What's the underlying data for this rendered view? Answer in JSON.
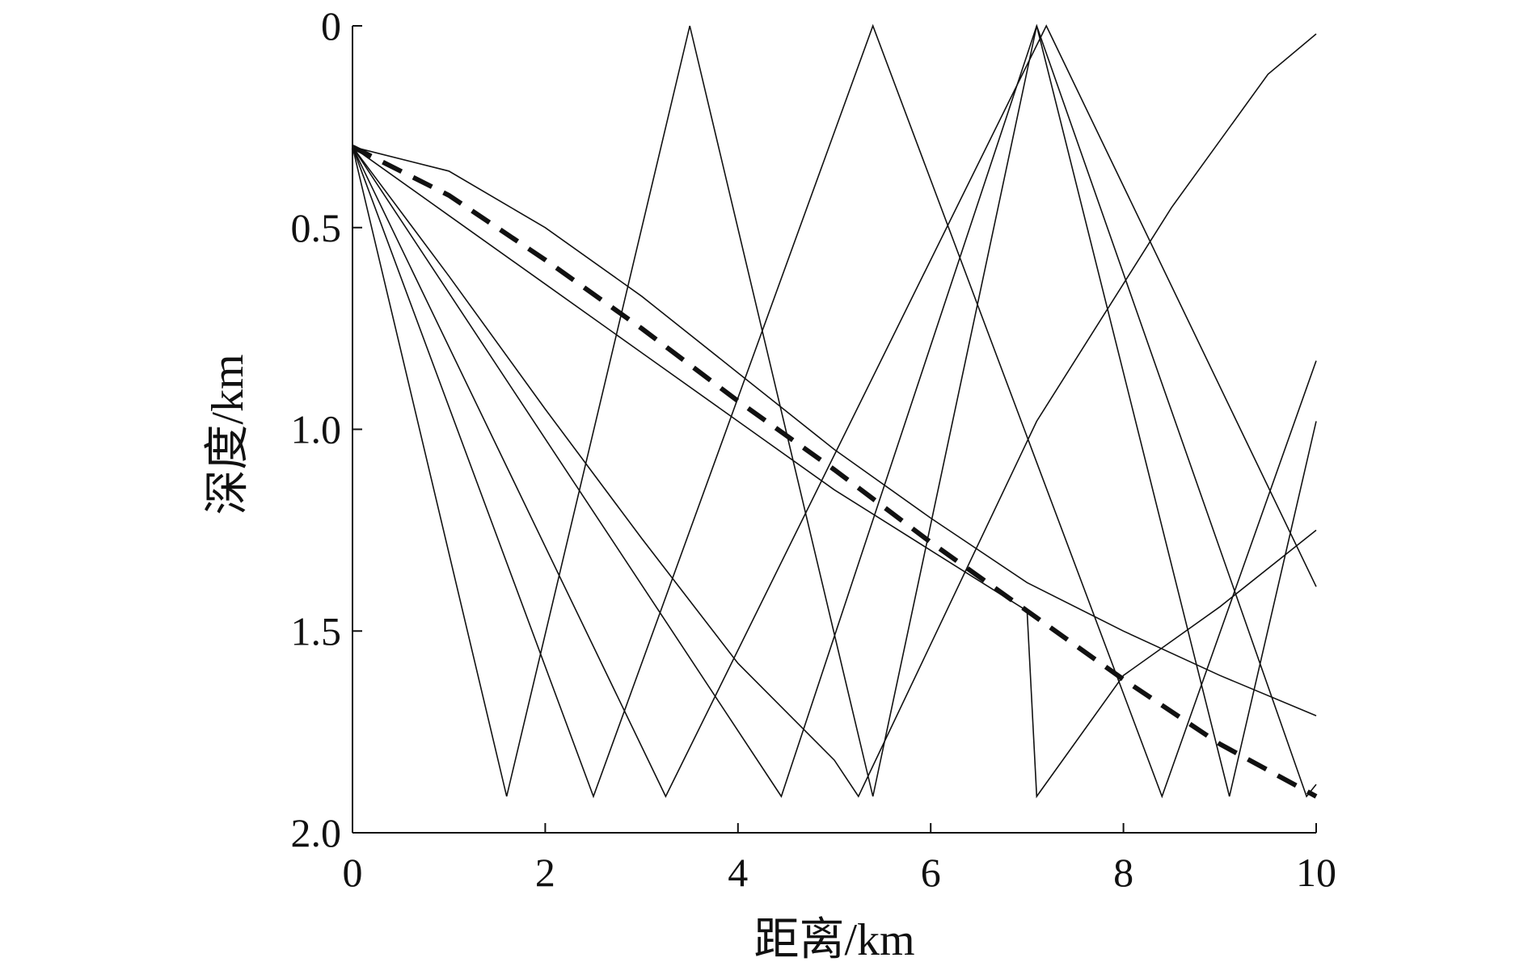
{
  "chart_data": {
    "type": "line",
    "title": "",
    "xlabel": "距离/km",
    "ylabel": "深度/km",
    "xlim": [
      0,
      10
    ],
    "ylim": [
      2.0,
      0
    ],
    "y_inverted": true,
    "x_ticks": [
      0,
      2,
      4,
      6,
      8,
      10
    ],
    "x_tick_labels": [
      "0",
      "2",
      "4",
      "6",
      "8",
      "10"
    ],
    "y_ticks": [
      0,
      0.5,
      1.0,
      1.5,
      2.0
    ],
    "y_tick_labels": [
      "0",
      "0.5",
      "1.0",
      "1.5",
      "2.0"
    ],
    "grid": false,
    "legend": "none",
    "source_point": {
      "x": 0,
      "y": 0.3
    },
    "line_color": "#111111",
    "series": [
      {
        "style": "solid",
        "points": [
          [
            0,
            0.3
          ],
          [
            1.6,
            1.91
          ],
          [
            3.5,
            0
          ],
          [
            5.4,
            1.91
          ],
          [
            7.1,
            0
          ],
          [
            9.1,
            1.91
          ],
          [
            10,
            0.98
          ]
        ]
      },
      {
        "style": "solid",
        "points": [
          [
            0,
            0.3
          ],
          [
            2.5,
            1.91
          ],
          [
            5.4,
            0
          ],
          [
            8.4,
            1.91
          ],
          [
            10,
            0.83
          ]
        ]
      },
      {
        "style": "solid",
        "points": [
          [
            0,
            0.3
          ],
          [
            3.25,
            1.91
          ],
          [
            7.2,
            0
          ],
          [
            10,
            1.39
          ]
        ]
      },
      {
        "style": "solid",
        "points": [
          [
            0,
            0.3
          ],
          [
            4.45,
            1.91
          ],
          [
            7.1,
            0
          ],
          [
            9.9,
            1.91
          ],
          [
            10,
            1.88
          ]
        ]
      },
      {
        "style": "solid",
        "points": [
          [
            0,
            0.3
          ],
          [
            1,
            0.62
          ],
          [
            2,
            0.95
          ],
          [
            3,
            1.27
          ],
          [
            4,
            1.58
          ],
          [
            5,
            1.82
          ],
          [
            5.25,
            1.91
          ],
          [
            7.1,
            0.98
          ],
          [
            8.5,
            0.45
          ],
          [
            9.5,
            0.12
          ],
          [
            10,
            0.02
          ]
        ]
      },
      {
        "style": "solid",
        "points": [
          [
            0,
            0.3
          ],
          [
            1,
            0.47
          ],
          [
            2,
            0.64
          ],
          [
            3,
            0.81
          ],
          [
            4,
            0.98
          ],
          [
            5,
            1.15
          ],
          [
            6,
            1.3
          ],
          [
            7,
            1.45
          ],
          [
            7.1,
            1.91
          ],
          [
            8,
            1.61
          ],
          [
            9,
            1.44
          ],
          [
            10,
            1.25
          ]
        ]
      },
      {
        "style": "solid",
        "points": [
          [
            0,
            0.3
          ],
          [
            1,
            0.36
          ],
          [
            2,
            0.5
          ],
          [
            3,
            0.67
          ],
          [
            4,
            0.86
          ],
          [
            5,
            1.05
          ],
          [
            6,
            1.22
          ],
          [
            7,
            1.38
          ],
          [
            8,
            1.5
          ],
          [
            9,
            1.61
          ],
          [
            10,
            1.71
          ]
        ]
      },
      {
        "style": "dashed",
        "points": [
          [
            0,
            0.3
          ],
          [
            1,
            0.42
          ],
          [
            2,
            0.58
          ],
          [
            3,
            0.75
          ],
          [
            4,
            0.93
          ],
          [
            5,
            1.1
          ],
          [
            6,
            1.28
          ],
          [
            7,
            1.45
          ],
          [
            8,
            1.62
          ],
          [
            9,
            1.78
          ],
          [
            10,
            1.91
          ]
        ]
      }
    ]
  }
}
